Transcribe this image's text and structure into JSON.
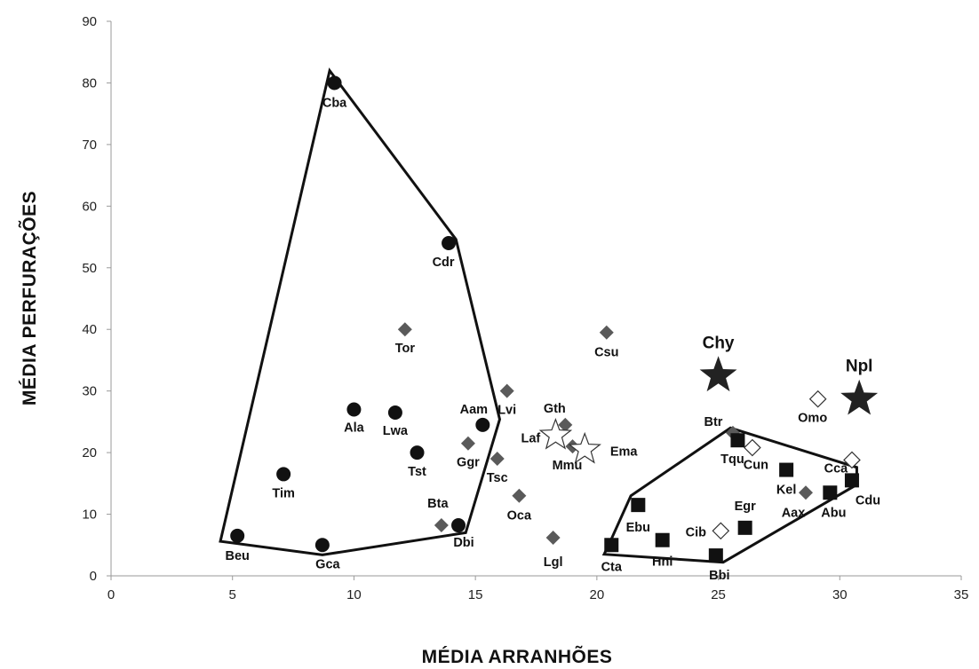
{
  "chart_data": {
    "type": "scatter",
    "title": "",
    "xlabel": "MÉDIA ARRANHÕES",
    "ylabel": "MÉDIA PERFURAÇÕES",
    "xlim": [
      0,
      35
    ],
    "ylim": [
      0,
      90
    ],
    "xticks": [
      0,
      5,
      10,
      15,
      20,
      25,
      30,
      35
    ],
    "yticks": [
      0,
      10,
      20,
      30,
      40,
      50,
      60,
      70,
      80,
      90
    ],
    "grid": false,
    "legend": "none",
    "series": [
      {
        "marker": "circle-filled",
        "color": "#111111",
        "points": [
          {
            "label": "Cba",
            "x": 9.2,
            "y": 80
          },
          {
            "label": "Cdr",
            "x": 13.9,
            "y": 54
          },
          {
            "label": "Ala",
            "x": 10.0,
            "y": 27
          },
          {
            "label": "Lwa",
            "x": 11.7,
            "y": 26.5
          },
          {
            "label": "Tst",
            "x": 12.6,
            "y": 20
          },
          {
            "label": "Aam",
            "x": 15.3,
            "y": 24.5
          },
          {
            "label": "Tim",
            "x": 7.1,
            "y": 16.5
          },
          {
            "label": "Beu",
            "x": 5.2,
            "y": 6.5
          },
          {
            "label": "Gca",
            "x": 8.7,
            "y": 5
          },
          {
            "label": "Dbi",
            "x": 14.3,
            "y": 8.2
          }
        ]
      },
      {
        "marker": "diamond-gray",
        "color": "#5a5a5a",
        "points": [
          {
            "label": "Tor",
            "x": 12.1,
            "y": 40
          },
          {
            "label": "Csu",
            "x": 20.4,
            "y": 39.5
          },
          {
            "label": "Lvi",
            "x": 16.3,
            "y": 30
          },
          {
            "label": "Gth",
            "x": 18.7,
            "y": 24.5
          },
          {
            "label": "Ggr",
            "x": 14.7,
            "y": 21.5
          },
          {
            "label": "Tsc",
            "x": 15.9,
            "y": 19
          },
          {
            "label": "Mmu",
            "x": 19.0,
            "y": 21
          },
          {
            "label": "Oca",
            "x": 16.8,
            "y": 13
          },
          {
            "label": "Bta",
            "x": 13.6,
            "y": 8.2
          },
          {
            "label": "Lgl",
            "x": 18.2,
            "y": 6.2
          },
          {
            "label": "Btr",
            "x": 25.6,
            "y": 23.2
          },
          {
            "label": "Aax",
            "x": 28.6,
            "y": 13.5
          }
        ]
      },
      {
        "marker": "star-open",
        "color": "#ffffff",
        "points": [
          {
            "label": "Laf",
            "x": 18.3,
            "y": 22.8
          },
          {
            "label": "Ema",
            "x": 19.5,
            "y": 20.5
          }
        ]
      },
      {
        "marker": "square-filled",
        "color": "#111111",
        "points": [
          {
            "label": "Tqu",
            "x": 25.8,
            "y": 22
          },
          {
            "label": "Kel",
            "x": 27.8,
            "y": 17.2
          },
          {
            "label": "Cdu",
            "x": 30.5,
            "y": 15.5
          },
          {
            "label": "Abu",
            "x": 29.6,
            "y": 13.5
          },
          {
            "label": "Ebu",
            "x": 21.7,
            "y": 11.5
          },
          {
            "label": "Egr",
            "x": 26.1,
            "y": 7.8
          },
          {
            "label": "Hni",
            "x": 22.7,
            "y": 5.8
          },
          {
            "label": "Cta",
            "x": 20.6,
            "y": 5
          },
          {
            "label": "Bbi",
            "x": 24.9,
            "y": 3.3
          }
        ]
      },
      {
        "marker": "diamond-open",
        "color": "#ffffff",
        "points": [
          {
            "label": "Omo",
            "x": 29.1,
            "y": 28.7
          },
          {
            "label": "Cun",
            "x": 26.4,
            "y": 20.8
          },
          {
            "label": "Cca",
            "x": 30.5,
            "y": 18.8
          },
          {
            "label": "Cib",
            "x": 25.1,
            "y": 7.3
          }
        ]
      },
      {
        "marker": "star-filled",
        "color": "#222222",
        "points": [
          {
            "label": "Chy",
            "x": 25.0,
            "y": 32.5
          },
          {
            "label": "Npl",
            "x": 30.8,
            "y": 28.7
          }
        ]
      }
    ],
    "hulls": [
      [
        [
          4.5,
          5.6
        ],
        [
          9.0,
          82.0
        ],
        [
          14.2,
          54.6
        ],
        [
          16.0,
          25.4
        ],
        [
          14.6,
          7.0
        ],
        [
          8.7,
          3.4
        ]
      ],
      [
        [
          20.3,
          3.5
        ],
        [
          20.6,
          6.0
        ],
        [
          21.4,
          13.0
        ],
        [
          25.5,
          24.0
        ],
        [
          30.7,
          17.6
        ],
        [
          30.7,
          14.8
        ],
        [
          25.2,
          2.2
        ]
      ]
    ]
  }
}
